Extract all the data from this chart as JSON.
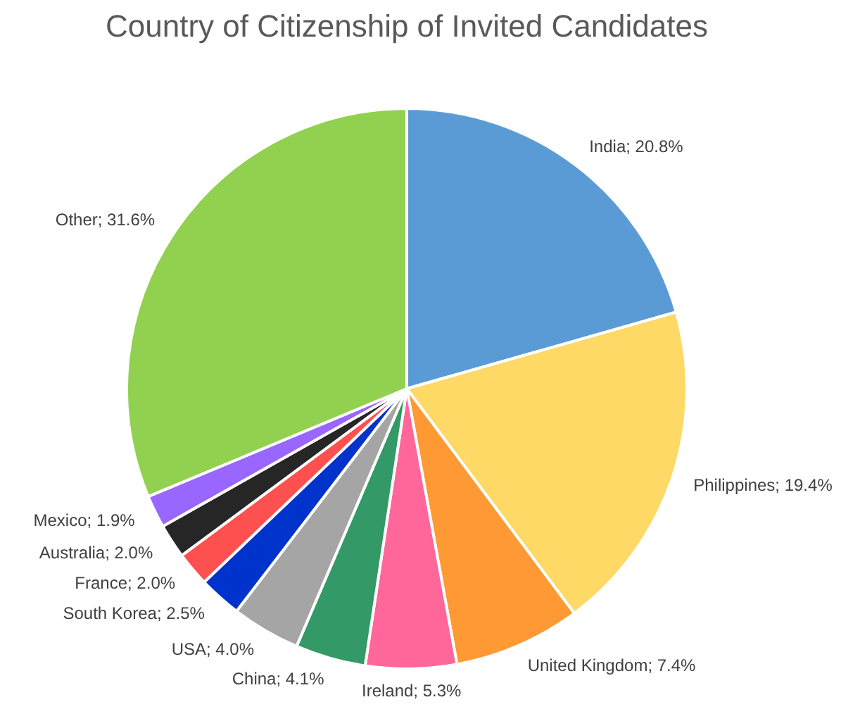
{
  "chart_data": {
    "type": "pie",
    "title": "Country of Citizenship of Invited Candidates",
    "categories": [
      "India",
      "Philippines",
      "United Kingdom",
      "Ireland",
      "China",
      "USA",
      "South Korea",
      "France",
      "Australia",
      "Mexico",
      "Other"
    ],
    "values": [
      20.8,
      19.4,
      7.4,
      5.3,
      4.1,
      4.0,
      2.5,
      2.0,
      2.0,
      1.9,
      31.6
    ],
    "value_labels": [
      "20.8%",
      "19.4%",
      "7.4%",
      "5.3%",
      "4.1%",
      "4.0%",
      "2.5%",
      "2.0%",
      "2.0%",
      "1.9%",
      "31.6%"
    ],
    "colors": [
      "#5b9bd5",
      "#ffd966",
      "#ff9933",
      "#ff6699",
      "#339966",
      "#a5a5a5",
      "#0033cc",
      "#ff5050",
      "#262626",
      "#9966ff",
      "#92d050"
    ],
    "legend": false
  }
}
